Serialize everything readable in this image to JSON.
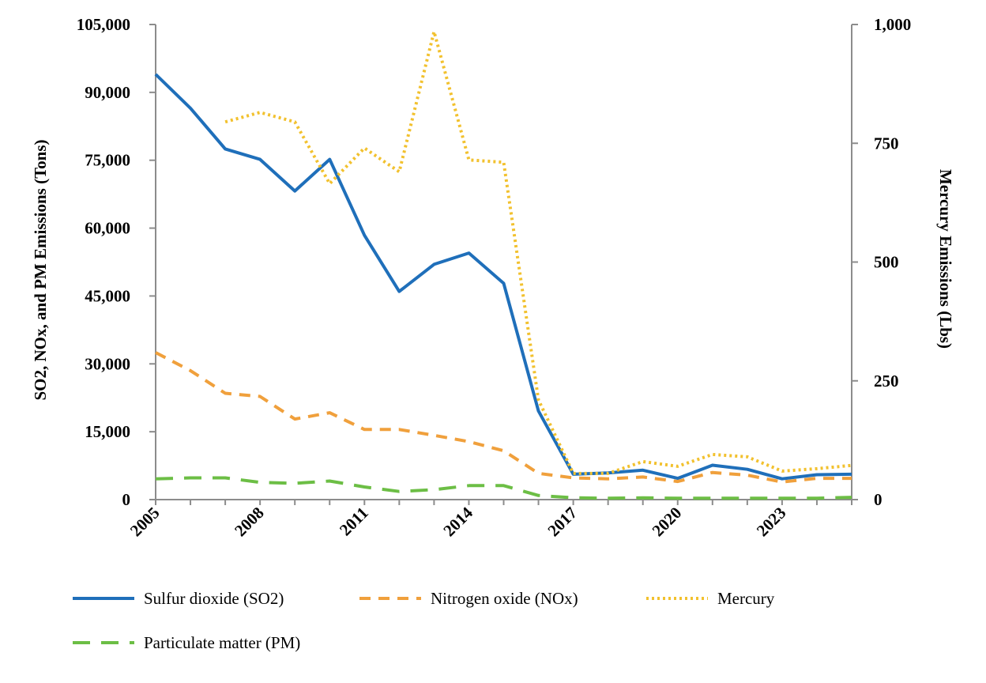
{
  "chart_data": {
    "type": "line",
    "title": "",
    "xlabel": "",
    "ylabel": "SO2, NOx, and PM Emissions (Tons)",
    "y2label": "Mercury Emissions (Lbs)",
    "x": [
      2005,
      2006,
      2007,
      2008,
      2009,
      2010,
      2011,
      2012,
      2013,
      2014,
      2015,
      2016,
      2017,
      2018,
      2019,
      2020,
      2021,
      2022,
      2023,
      2024,
      2025
    ],
    "x_tick_labels": [
      "2005",
      "2008",
      "2011",
      "2014",
      "2017",
      "2020",
      "2023"
    ],
    "x_tick_values": [
      2005,
      2008,
      2011,
      2014,
      2017,
      2020,
      2023
    ],
    "xlim": [
      2005,
      2025
    ],
    "ylim": [
      0,
      105000
    ],
    "y_tick_labels": [
      "0",
      "15,000",
      "30,000",
      "45,000",
      "60,000",
      "75,000",
      "90,000",
      "105,000"
    ],
    "y_tick_values": [
      0,
      15000,
      30000,
      45000,
      60000,
      75000,
      90000,
      105000
    ],
    "y2lim": [
      0,
      1000
    ],
    "y2_tick_labels": [
      "0",
      "250",
      "500",
      "750",
      "1,000"
    ],
    "y2_tick_values": [
      0,
      250,
      500,
      750,
      1000
    ],
    "grid": false,
    "legend_position": "bottom",
    "series": [
      {
        "name": "Sulfur dioxide (SO2)",
        "axis": "left",
        "color": "#1f6fba",
        "dash": "solid",
        "values": [
          94000,
          86500,
          77500,
          75200,
          68200,
          75200,
          58400,
          46000,
          52000,
          54500,
          47800,
          19600,
          5600,
          5900,
          6500,
          4700,
          7600,
          6700,
          4600,
          5500,
          5600
        ]
      },
      {
        "name": "Nitrogen oxide (NOx)",
        "axis": "left",
        "color": "#f0a03c",
        "dash": "dashed",
        "values": [
          32500,
          28500,
          23500,
          22800,
          17800,
          19200,
          15500,
          15500,
          14200,
          12800,
          10800,
          5800,
          4800,
          4600,
          5000,
          4000,
          6000,
          5400,
          3900,
          4700,
          4700
        ]
      },
      {
        "name": "Mercury",
        "axis": "right",
        "color": "#f2c12e",
        "dash": "dotted",
        "values": [
          null,
          null,
          795,
          815,
          795,
          665,
          740,
          690,
          985,
          715,
          710,
          210,
          55,
          55,
          80,
          70,
          95,
          90,
          60,
          65,
          72
        ]
      },
      {
        "name": "Particulate matter (PM)",
        "axis": "left",
        "color": "#6cbe45",
        "dash": "long-dashed",
        "values": [
          4600,
          4800,
          4800,
          3800,
          3600,
          4100,
          2800,
          1800,
          2200,
          3100,
          3100,
          900,
          400,
          300,
          400,
          300,
          300,
          300,
          300,
          300,
          500
        ]
      }
    ]
  }
}
